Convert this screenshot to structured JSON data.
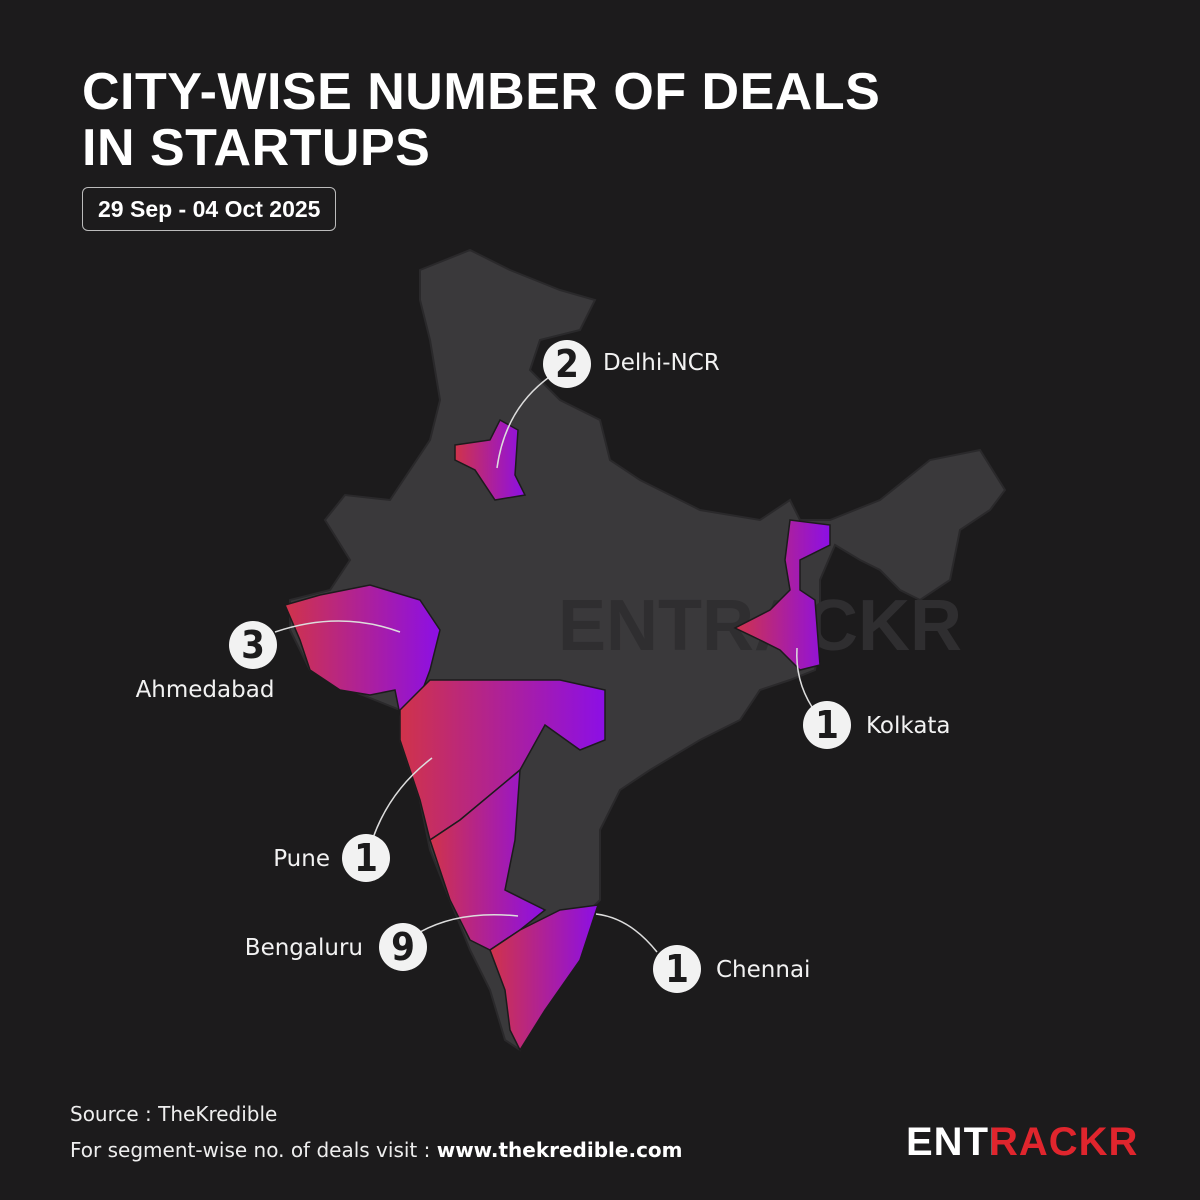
{
  "header": {
    "title": "CITY-WISE NUMBER OF DEALS IN STARTUPS",
    "date": "29 Sep - 04 Oct 2025"
  },
  "cities": [
    {
      "name": "Delhi-NCR",
      "deals": 2
    },
    {
      "name": "Ahmedabad",
      "deals": 3
    },
    {
      "name": "Kolkata",
      "deals": 1
    },
    {
      "name": "Pune",
      "deals": 1
    },
    {
      "name": "Bengaluru",
      "deals": 9
    },
    {
      "name": "Chennai",
      "deals": 1
    }
  ],
  "footer": {
    "source": "Source : TheKredible",
    "note": "For segment-wise no. of deals visit :",
    "link": "www.thekredible.com"
  },
  "logo": "ENTRACKR"
}
